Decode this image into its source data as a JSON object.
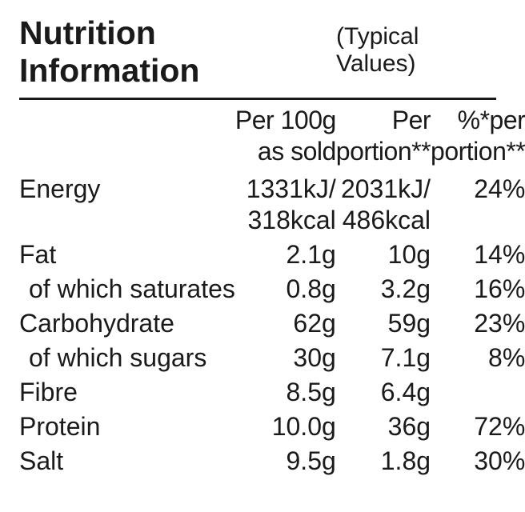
{
  "colors": {
    "text": "#1a1a1a",
    "background": "#ffffff",
    "rule": "#1a1a1a"
  },
  "typography": {
    "title_fontsize": 41,
    "subtitle_fontsize": 30,
    "body_fontsize": 32,
    "title_weight": 700
  },
  "header": {
    "title": "Nutrition Information",
    "subtitle": "(Typical Values)"
  },
  "columns": {
    "c1": {
      "line1": "Per 100g",
      "line2": "as sold"
    },
    "c2": {
      "line1": "Per",
      "line2": "portion**"
    },
    "c3": {
      "line1": "%*per",
      "line2": "portion**"
    }
  },
  "rows": [
    {
      "name": "Energy",
      "indent": false,
      "c1": "1331kJ/\n318kcal",
      "c2": "2031kJ/\n486kcal",
      "c3": "24%"
    },
    {
      "name": "Fat",
      "indent": false,
      "c1": "2.1g",
      "c2": "10g",
      "c3": "14%"
    },
    {
      "name": "of which saturates",
      "indent": true,
      "c1": "0.8g",
      "c2": "3.2g",
      "c3": "16%"
    },
    {
      "name": "Carbohydrate",
      "indent": false,
      "c1": "62g",
      "c2": "59g",
      "c3": "23%"
    },
    {
      "name": "of which sugars",
      "indent": true,
      "c1": "30g",
      "c2": "7.1g",
      "c3": "8%"
    },
    {
      "name": "Fibre",
      "indent": false,
      "c1": "8.5g",
      "c2": "6.4g",
      "c3": ""
    },
    {
      "name": "Protein",
      "indent": false,
      "c1": "10.0g",
      "c2": "36g",
      "c3": "72%"
    },
    {
      "name": "Salt",
      "indent": false,
      "c1": "9.5g",
      "c2": "1.8g",
      "c3": "30%"
    }
  ]
}
